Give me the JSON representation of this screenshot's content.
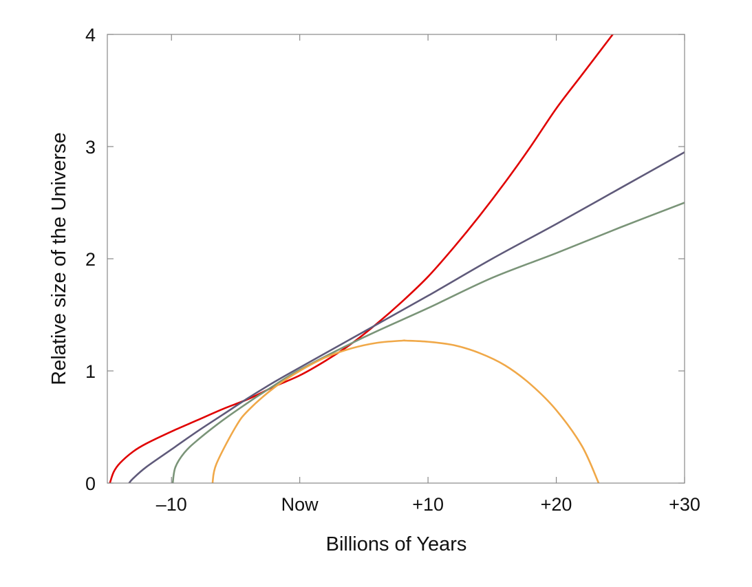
{
  "chart_data": {
    "type": "line",
    "title": "",
    "xlabel": "Billions of Years",
    "ylabel": "Relative size of the Universe",
    "xlim": [
      -15,
      30
    ],
    "ylim": [
      0,
      4
    ],
    "grid": false,
    "x_ticks": [
      {
        "value": -10,
        "label": "–10"
      },
      {
        "value": 0,
        "label": "Now"
      },
      {
        "value": 10,
        "label": "+10"
      },
      {
        "value": 20,
        "label": "+20"
      },
      {
        "value": 30,
        "label": "+30"
      }
    ],
    "y_ticks": [
      {
        "value": 0,
        "label": "0"
      },
      {
        "value": 1,
        "label": "1"
      },
      {
        "value": 2,
        "label": "2"
      },
      {
        "value": 3,
        "label": "3"
      },
      {
        "value": 4,
        "label": "4"
      }
    ],
    "series": [
      {
        "color": "#e00000",
        "x": [
          -14.8,
          -14.5,
          -14,
          -13,
          -12,
          -10,
          -8,
          -6,
          -4,
          -2,
          0,
          2,
          4,
          6,
          8,
          10,
          12,
          14,
          16,
          18,
          20,
          22,
          24.4
        ],
        "y": [
          0,
          0.1,
          0.18,
          0.28,
          0.35,
          0.46,
          0.56,
          0.66,
          0.75,
          0.86,
          0.96,
          1.09,
          1.24,
          1.42,
          1.62,
          1.84,
          2.1,
          2.38,
          2.68,
          3.0,
          3.34,
          3.64,
          4.0
        ]
      },
      {
        "color": "#5f5a7a",
        "x": [
          -13.3,
          -13,
          -12,
          -10,
          -8,
          -6,
          -4,
          -2,
          0,
          5,
          10,
          15,
          20,
          25,
          30
        ],
        "y": [
          0,
          0.04,
          0.14,
          0.3,
          0.46,
          0.61,
          0.76,
          0.9,
          1.03,
          1.35,
          1.67,
          2.0,
          2.31,
          2.63,
          2.95
        ]
      },
      {
        "color": "#7a9478",
        "x": [
          -9.9,
          -9.7,
          -9,
          -8,
          -6,
          -4,
          -2,
          0,
          5,
          10,
          15,
          20,
          25,
          30
        ],
        "y": [
          0,
          0.14,
          0.27,
          0.38,
          0.56,
          0.72,
          0.87,
          1.01,
          1.3,
          1.56,
          1.83,
          2.05,
          2.28,
          2.5
        ]
      },
      {
        "color": "#f0a848",
        "x": [
          -6.8,
          -6.5,
          -5,
          -4,
          -2,
          0,
          2,
          4,
          6,
          8,
          8.3,
          10,
          12,
          14,
          16,
          18,
          20,
          22,
          23.3
        ],
        "y": [
          0,
          0.17,
          0.5,
          0.65,
          0.85,
          1.0,
          1.12,
          1.2,
          1.25,
          1.27,
          1.27,
          1.26,
          1.23,
          1.16,
          1.05,
          0.88,
          0.65,
          0.33,
          0
        ]
      }
    ]
  }
}
